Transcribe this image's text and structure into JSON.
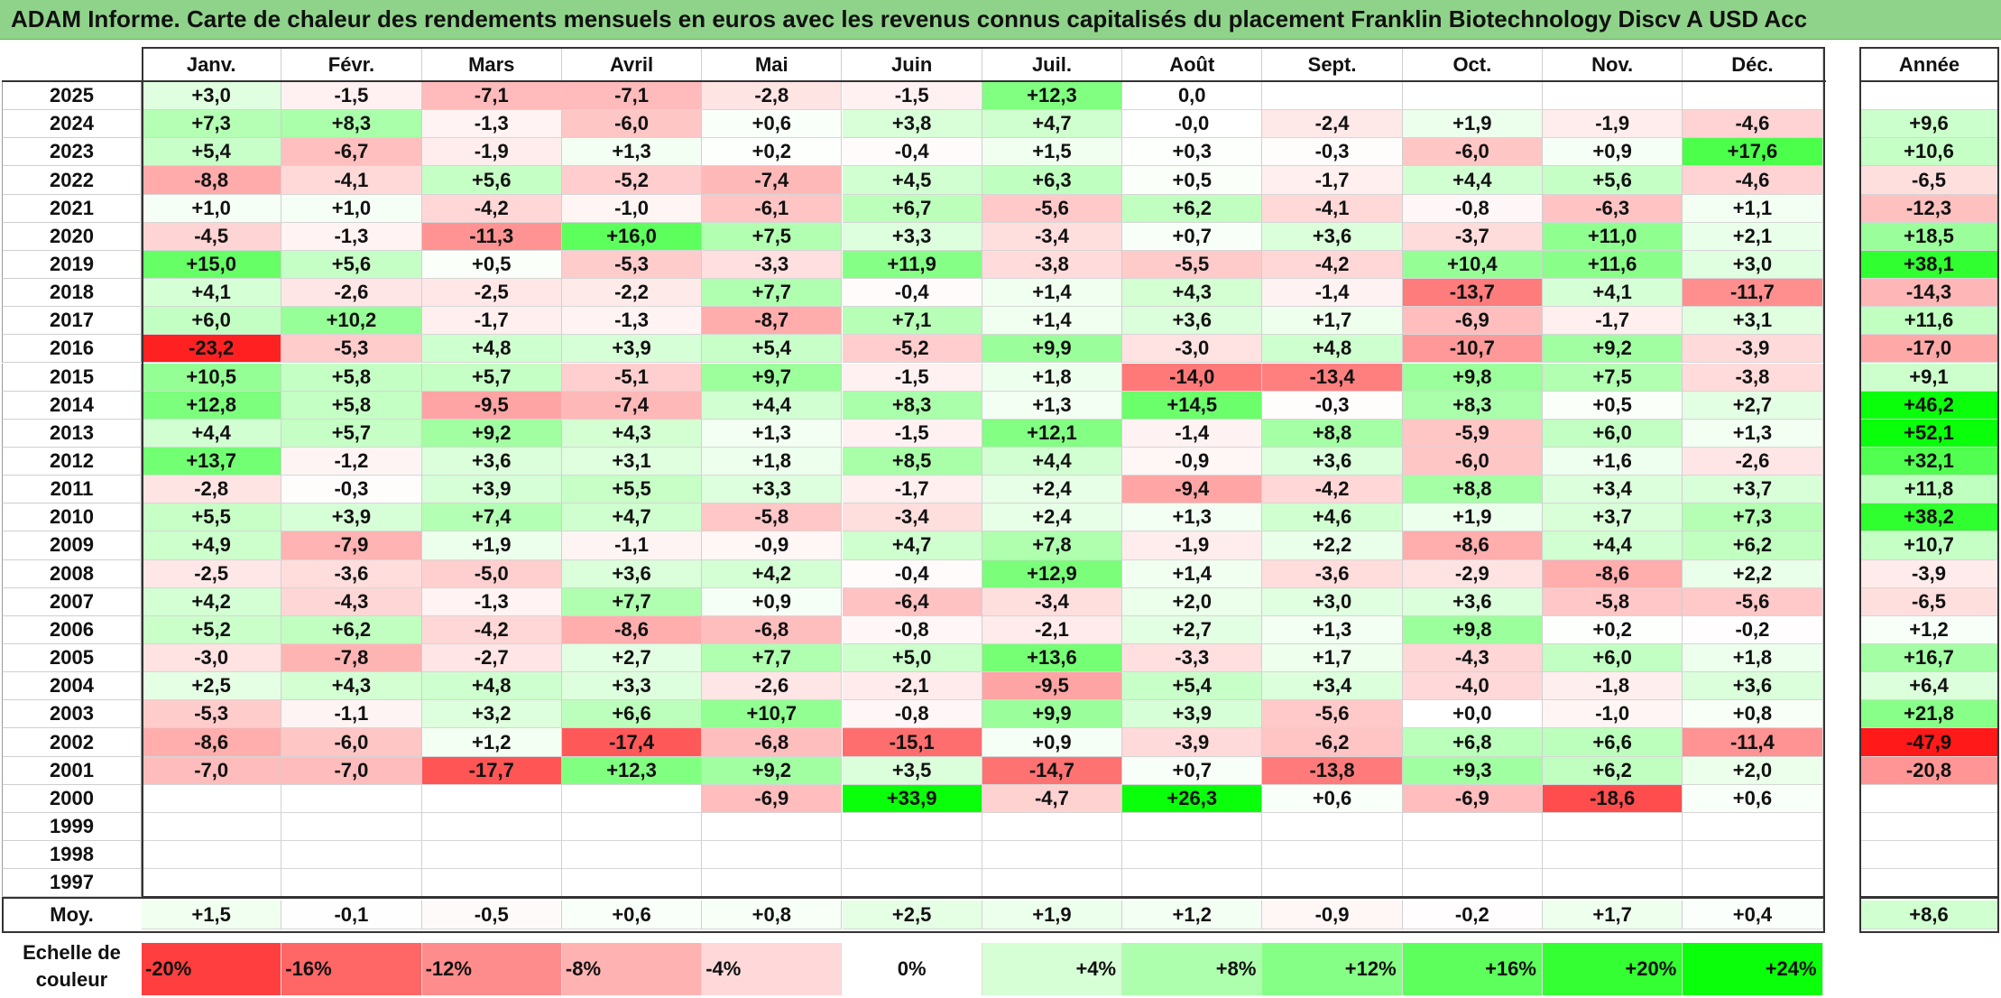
{
  "title": "ADAM Informe. Carte de chaleur des rendements mensuels en euros avec les revenus connus capitalisés du placement Franklin Biotechnology Discv A USD Acc",
  "chart_data": {
    "type": "heatmap",
    "columns": [
      "Janv.",
      "Févr.",
      "Mars",
      "Avril",
      "Mai",
      "Juin",
      "Juil.",
      "Août",
      "Sept.",
      "Oct.",
      "Nov.",
      "Déc."
    ],
    "year_header": "Année",
    "rows": [
      {
        "label": "2025",
        "values": [
          "+3,0",
          "-1,5",
          "-7,1",
          "-7,1",
          "-2,8",
          "-1,5",
          "+12,3",
          "0,0",
          "",
          "",
          "",
          ""
        ],
        "year": ""
      },
      {
        "label": "2024",
        "values": [
          "+7,3",
          "+8,3",
          "-1,3",
          "-6,0",
          "+0,6",
          "+3,8",
          "+4,7",
          "-0,0",
          "-2,4",
          "+1,9",
          "-1,9",
          "-4,6"
        ],
        "year": "+9,6"
      },
      {
        "label": "2023",
        "values": [
          "+5,4",
          "-6,7",
          "-1,9",
          "+1,3",
          "+0,2",
          "-0,4",
          "+1,5",
          "+0,3",
          "-0,3",
          "-6,0",
          "+0,9",
          "+17,6"
        ],
        "year": "+10,6"
      },
      {
        "label": "2022",
        "values": [
          "-8,8",
          "-4,1",
          "+5,6",
          "-5,2",
          "-7,4",
          "+4,5",
          "+6,3",
          "+0,5",
          "-1,7",
          "+4,4",
          "+5,6",
          "-4,6"
        ],
        "year": "-6,5"
      },
      {
        "label": "2021",
        "values": [
          "+1,0",
          "+1,0",
          "-4,2",
          "-1,0",
          "-6,1",
          "+6,7",
          "-5,6",
          "+6,2",
          "-4,1",
          "-0,8",
          "-6,3",
          "+1,1"
        ],
        "year": "-12,3"
      },
      {
        "label": "2020",
        "values": [
          "-4,5",
          "-1,3",
          "-11,3",
          "+16,0",
          "+7,5",
          "+3,3",
          "-3,4",
          "+0,7",
          "+3,6",
          "-3,7",
          "+11,0",
          "+2,1"
        ],
        "year": "+18,5"
      },
      {
        "label": "2019",
        "values": [
          "+15,0",
          "+5,6",
          "+0,5",
          "-5,3",
          "-3,3",
          "+11,9",
          "-3,8",
          "-5,5",
          "-4,2",
          "+10,4",
          "+11,6",
          "+3,0"
        ],
        "year": "+38,1"
      },
      {
        "label": "2018",
        "values": [
          "+4,1",
          "-2,6",
          "-2,5",
          "-2,2",
          "+7,7",
          "-0,4",
          "+1,4",
          "+4,3",
          "-1,4",
          "-13,7",
          "+4,1",
          "-11,7"
        ],
        "year": "-14,3"
      },
      {
        "label": "2017",
        "values": [
          "+6,0",
          "+10,2",
          "-1,7",
          "-1,3",
          "-8,7",
          "+7,1",
          "+1,4",
          "+3,6",
          "+1,7",
          "-6,9",
          "-1,7",
          "+3,1"
        ],
        "year": "+11,6"
      },
      {
        "label": "2016",
        "values": [
          "-23,2",
          "-5,3",
          "+4,8",
          "+3,9",
          "+5,4",
          "-5,2",
          "+9,9",
          "-3,0",
          "+4,8",
          "-10,7",
          "+9,2",
          "-3,9"
        ],
        "year": "-17,0"
      },
      {
        "label": "2015",
        "values": [
          "+10,5",
          "+5,8",
          "+5,7",
          "-5,1",
          "+9,7",
          "-1,5",
          "+1,8",
          "-14,0",
          "-13,4",
          "+9,8",
          "+7,5",
          "-3,8"
        ],
        "year": "+9,1"
      },
      {
        "label": "2014",
        "values": [
          "+12,8",
          "+5,8",
          "-9,5",
          "-7,4",
          "+4,4",
          "+8,3",
          "+1,3",
          "+14,5",
          "-0,3",
          "+8,3",
          "+0,5",
          "+2,7"
        ],
        "year": "+46,2"
      },
      {
        "label": "2013",
        "values": [
          "+4,4",
          "+5,7",
          "+9,2",
          "+4,3",
          "+1,3",
          "-1,5",
          "+12,1",
          "-1,4",
          "+8,8",
          "-5,9",
          "+6,0",
          "+1,3"
        ],
        "year": "+52,1"
      },
      {
        "label": "2012",
        "values": [
          "+13,7",
          "-1,2",
          "+3,6",
          "+3,1",
          "+1,8",
          "+8,5",
          "+4,4",
          "-0,9",
          "+3,6",
          "-6,0",
          "+1,6",
          "-2,6"
        ],
        "year": "+32,1"
      },
      {
        "label": "2011",
        "values": [
          "-2,8",
          "-0,3",
          "+3,9",
          "+5,5",
          "+3,3",
          "-1,7",
          "+2,4",
          "-9,4",
          "-4,2",
          "+8,8",
          "+3,4",
          "+3,7"
        ],
        "year": "+11,8"
      },
      {
        "label": "2010",
        "values": [
          "+5,5",
          "+3,9",
          "+7,4",
          "+4,7",
          "-5,8",
          "-3,4",
          "+2,4",
          "+1,3",
          "+4,6",
          "+1,9",
          "+3,7",
          "+7,3"
        ],
        "year": "+38,2"
      },
      {
        "label": "2009",
        "values": [
          "+4,9",
          "-7,9",
          "+1,9",
          "-1,1",
          "-0,9",
          "+4,7",
          "+7,8",
          "-1,9",
          "+2,2",
          "-8,6",
          "+4,4",
          "+6,2"
        ],
        "year": "+10,7"
      },
      {
        "label": "2008",
        "values": [
          "-2,5",
          "-3,6",
          "-5,0",
          "+3,6",
          "+4,2",
          "-0,4",
          "+12,9",
          "+1,4",
          "-3,6",
          "-2,9",
          "-8,6",
          "+2,2"
        ],
        "year": "-3,9"
      },
      {
        "label": "2007",
        "values": [
          "+4,2",
          "-4,3",
          "-1,3",
          "+7,7",
          "+0,9",
          "-6,4",
          "-3,4",
          "+2,0",
          "+3,0",
          "+3,6",
          "-5,8",
          "-5,6"
        ],
        "year": "-6,5"
      },
      {
        "label": "2006",
        "values": [
          "+5,2",
          "+6,2",
          "-4,2",
          "-8,6",
          "-6,8",
          "-0,8",
          "-2,1",
          "+2,7",
          "+1,3",
          "+9,8",
          "+0,2",
          "-0,2"
        ],
        "year": "+1,2"
      },
      {
        "label": "2005",
        "values": [
          "-3,0",
          "-7,8",
          "-2,7",
          "+2,7",
          "+7,7",
          "+5,0",
          "+13,6",
          "-3,3",
          "+1,7",
          "-4,3",
          "+6,0",
          "+1,8"
        ],
        "year": "+16,7"
      },
      {
        "label": "2004",
        "values": [
          "+2,5",
          "+4,3",
          "+4,8",
          "+3,3",
          "-2,6",
          "-2,1",
          "-9,5",
          "+5,4",
          "+3,4",
          "-4,0",
          "-1,8",
          "+3,6"
        ],
        "year": "+6,4"
      },
      {
        "label": "2003",
        "values": [
          "-5,3",
          "-1,1",
          "+3,2",
          "+6,6",
          "+10,7",
          "-0,8",
          "+9,9",
          "+3,9",
          "-5,6",
          "+0,0",
          "-1,0",
          "+0,8"
        ],
        "year": "+21,8"
      },
      {
        "label": "2002",
        "values": [
          "-8,6",
          "-6,0",
          "+1,2",
          "-17,4",
          "-6,8",
          "-15,1",
          "+0,9",
          "-3,9",
          "-6,2",
          "+6,8",
          "+6,6",
          "-11,4"
        ],
        "year": "-47,9"
      },
      {
        "label": "2001",
        "values": [
          "-7,0",
          "-7,0",
          "-17,7",
          "+12,3",
          "+9,2",
          "+3,5",
          "-14,7",
          "+0,7",
          "-13,8",
          "+9,3",
          "+6,2",
          "+2,0"
        ],
        "year": "-20,8"
      },
      {
        "label": "2000",
        "values": [
          "",
          "",
          "",
          "",
          "-6,9",
          "+33,9",
          "-4,7",
          "+26,3",
          "+0,6",
          "-6,9",
          "-18,6",
          "+0,6"
        ],
        "year": ""
      },
      {
        "label": "1999",
        "values": [
          "",
          "",
          "",
          "",
          "",
          "",
          "",
          "",
          "",
          "",
          "",
          ""
        ],
        "year": ""
      },
      {
        "label": "1998",
        "values": [
          "",
          "",
          "",
          "",
          "",
          "",
          "",
          "",
          "",
          "",
          "",
          ""
        ],
        "year": ""
      },
      {
        "label": "1997",
        "values": [
          "",
          "",
          "",
          "",
          "",
          "",
          "",
          "",
          "",
          "",
          "",
          ""
        ],
        "year": ""
      }
    ],
    "average": {
      "label": "Moy.",
      "values": [
        "+1,5",
        "-0,1",
        "-0,5",
        "+0,6",
        "+0,8",
        "+2,5",
        "+1,9",
        "+1,2",
        "-0,9",
        "-0,2",
        "+1,7",
        "+0,4"
      ],
      "year": "+8,6"
    },
    "color_scale": {
      "label": "Echelle de couleur",
      "steps": [
        "-20%",
        "-16%",
        "-12%",
        "-8%",
        "-4%",
        "0%",
        "+4%",
        "+8%",
        "+12%",
        "+16%",
        "+20%",
        "+24%"
      ],
      "negative_color": "#ff0000",
      "neutral_color": "#ffffff",
      "positive_color": "#00ff00"
    }
  }
}
